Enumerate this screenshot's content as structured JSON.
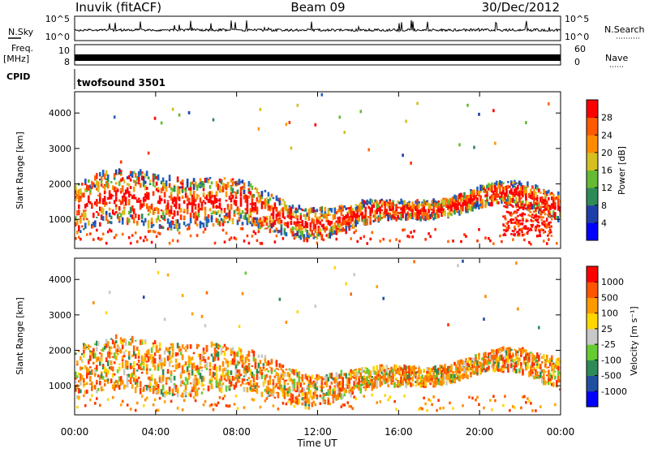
{
  "header": {
    "station": "Inuvik (fitACF)",
    "beam": "Beam 09",
    "date": "30/Dec/2012"
  },
  "strips": {
    "nsky_label": "N.Sky",
    "nsearch_label": "N.Search",
    "nsky_ticks": [
      "10^5",
      "10^0"
    ],
    "freq_label_1": "Freq.",
    "freq_label_2": "[MHz]",
    "freq_ticks": [
      "10",
      "8"
    ],
    "nave_label": "Nave",
    "nave_ticks": [
      "60",
      "0"
    ],
    "cpid_label": "CPID",
    "cpid_text": "twofsound 3501"
  },
  "chart_data": [
    {
      "type": "heatmap",
      "panel": "power",
      "ylabel": "Slant Range [km]",
      "yticks": [
        "4000",
        "3000",
        "2000",
        "1000"
      ],
      "ylim": [
        180,
        4600
      ],
      "colorbar_label": "Power [dB]",
      "colorbar_ticks": [
        "28",
        "24",
        "20",
        "16",
        "12",
        "8",
        "4"
      ],
      "colorbar_colors": [
        "#0000ff",
        "#1f3fa8",
        "#2e8b57",
        "#66bb33",
        "#d4c020",
        "#ff8c00",
        "#ff5a00",
        "#ff0000"
      ]
    },
    {
      "type": "heatmap",
      "panel": "velocity",
      "ylabel": "Slant Range [km]",
      "yticks": [
        "4000",
        "3000",
        "2000",
        "1000"
      ],
      "ylim": [
        180,
        4600
      ],
      "colorbar_label": "Velocity [m s⁻¹]",
      "colorbar_ticks": [
        "1000",
        "500",
        "100",
        "25",
        "-25",
        "-100",
        "-500",
        "-1000"
      ],
      "colorbar_colors": [
        "#0000ff",
        "#2050a0",
        "#2e8b57",
        "#66cc33",
        "#c8c8c8",
        "#ffd700",
        "#ff9900",
        "#ff5500",
        "#ff0000"
      ]
    }
  ],
  "xaxis": {
    "ticks": [
      "00:00",
      "04:00",
      "08:00",
      "12:00",
      "16:00",
      "20:00",
      "00:00"
    ],
    "label": "Time UT"
  }
}
